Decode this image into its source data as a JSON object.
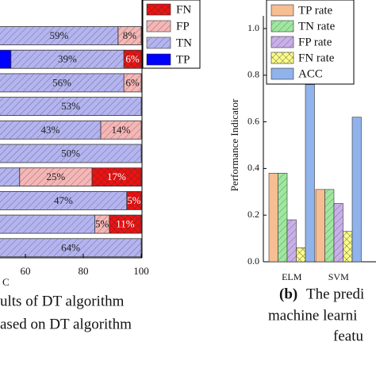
{
  "chart_data": [
    {
      "type": "stacked_barh",
      "xlim": [
        0,
        100
      ],
      "xticks": [
        60,
        80,
        100
      ],
      "xlabel": "C",
      "series": [
        {
          "name": "TP",
          "color": "#0000ff",
          "pattern": "solid",
          "values": [
            null,
            55,
            null,
            null,
            null,
            null,
            null,
            null,
            null,
            null
          ],
          "value_labels": [
            null,
            null,
            null,
            null,
            null,
            null,
            null,
            null,
            null,
            null
          ]
        },
        {
          "name": "TN",
          "color": "#b4b4f2",
          "pattern": "hatch",
          "values": [
            59,
            39,
            56,
            53,
            43,
            50,
            38,
            47,
            48,
            64
          ],
          "value_labels": [
            "59%",
            "39%",
            "56%",
            "53%",
            "43%",
            "50%",
            null,
            "47%",
            null,
            "64%"
          ]
        },
        {
          "name": "FP",
          "color": "#f7b6b6",
          "pattern": "hatch",
          "values": [
            8,
            null,
            6,
            null,
            14,
            null,
            25,
            null,
            5,
            null
          ],
          "value_labels": [
            "8%",
            null,
            "6%",
            null,
            "14%",
            null,
            "25%",
            null,
            "5%",
            null
          ]
        },
        {
          "name": "FN",
          "color": "#ee1111",
          "pattern": "cross",
          "values": [
            null,
            6,
            null,
            null,
            null,
            null,
            17,
            5,
            11,
            null
          ],
          "value_labels": [
            null,
            "6%",
            null,
            null,
            null,
            null,
            "17%",
            "5%",
            "11%",
            null
          ]
        }
      ],
      "caption": [
        "ults of DT algorithm",
        "ased on DT algorithm"
      ]
    },
    {
      "type": "bar",
      "categories": [
        "ELM",
        "SVM"
      ],
      "ylabel": "Performance Indicator",
      "ylim": [
        0,
        1
      ],
      "yticks": [
        {
          "value": 0,
          "label": "0.0"
        },
        0.2,
        0.4,
        0.6,
        0.8,
        {
          "value": 1,
          "label": "1.0"
        }
      ],
      "series": [
        {
          "name": "TP rate",
          "color": "#f7bd93",
          "pattern": "solid",
          "values": [
            0.38,
            0.31
          ]
        },
        {
          "name": "TN rate",
          "color": "#9fe89f",
          "pattern": "hatch",
          "values": [
            0.38,
            0.31
          ]
        },
        {
          "name": "FP rate",
          "color": "#c9b0ea",
          "pattern": "hatch",
          "values": [
            0.18,
            0.25
          ]
        },
        {
          "name": "FN rate",
          "color": "#fdfd8a",
          "pattern": "cross",
          "values": [
            0.06,
            0.13
          ]
        },
        {
          "name": "ACC",
          "color": "#8fb3ea",
          "pattern": "solid",
          "values": [
            0.76,
            0.62
          ]
        }
      ],
      "caption": {
        "label": "(b)",
        "lines": [
          "The predi",
          "machine learni",
          "featu"
        ]
      }
    }
  ]
}
